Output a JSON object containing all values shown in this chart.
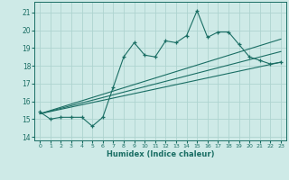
{
  "bg_color": "#ceeae7",
  "grid_color": "#aed4d0",
  "line_color": "#1a6e64",
  "xlabel": "Humidex (Indice chaleur)",
  "xlim": [
    -0.5,
    23.5
  ],
  "ylim": [
    13.8,
    21.6
  ],
  "yticks": [
    14,
    15,
    16,
    17,
    18,
    19,
    20,
    21
  ],
  "xticks": [
    0,
    1,
    2,
    3,
    4,
    5,
    6,
    7,
    8,
    9,
    10,
    11,
    12,
    13,
    14,
    15,
    16,
    17,
    18,
    19,
    20,
    21,
    22,
    23
  ],
  "line1_x": [
    0,
    1,
    2,
    3,
    4,
    5,
    6,
    7,
    8,
    9,
    10,
    11,
    12,
    13,
    14,
    15,
    16,
    17,
    18,
    19,
    20,
    21,
    22,
    23
  ],
  "line1_y": [
    15.4,
    15.0,
    15.1,
    15.1,
    15.1,
    14.6,
    15.1,
    16.8,
    18.5,
    19.3,
    18.6,
    18.5,
    19.4,
    19.3,
    19.7,
    21.1,
    19.6,
    19.9,
    19.9,
    19.2,
    18.5,
    18.3,
    18.1,
    18.2
  ],
  "line2_x": [
    0,
    23
  ],
  "line2_y": [
    15.3,
    18.2
  ],
  "line3_x": [
    0,
    23
  ],
  "line3_y": [
    15.3,
    18.8
  ],
  "line4_x": [
    0,
    23
  ],
  "line4_y": [
    15.3,
    19.5
  ]
}
